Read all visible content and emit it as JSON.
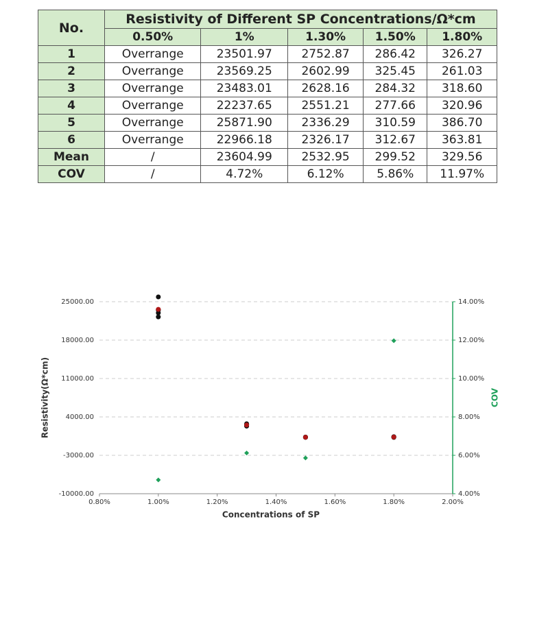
{
  "table": {
    "corner": "No.",
    "title": "Resistivity of Different SP Concentrations/Ω*cm",
    "columns": [
      "0.50%",
      "1%",
      "1.30%",
      "1.50%",
      "1.80%"
    ],
    "rows": [
      [
        "1",
        "Overrange",
        "23501.97",
        "2752.87",
        "286.42",
        "326.27"
      ],
      [
        "2",
        "Overrange",
        "23569.25",
        "2602.99",
        "325.45",
        "261.03"
      ],
      [
        "3",
        "Overrange",
        "23483.01",
        "2628.16",
        "284.32",
        "318.60"
      ],
      [
        "4",
        "Overrange",
        "22237.65",
        "2551.21",
        "277.66",
        "320.96"
      ],
      [
        "5",
        "Overrange",
        "25871.90",
        "2336.29",
        "310.59",
        "386.70"
      ],
      [
        "6",
        "Overrange",
        "22966.18",
        "2326.17",
        "312.67",
        "363.81"
      ],
      [
        "Mean",
        "/",
        "23604.99",
        "2532.95",
        "299.52",
        "329.56"
      ],
      [
        "COV",
        "/",
        "4.72%",
        "6.12%",
        "5.86%",
        "11.97%"
      ]
    ]
  },
  "chart_data": {
    "type": "scatter",
    "x_label": "Concentrations of SP",
    "y_label": "Resistivity(Ω*cm)",
    "y2_label": "COV",
    "xlim": [
      0.8,
      2.0
    ],
    "xticks": [
      {
        "value": 0.8,
        "label": "0.80%"
      },
      {
        "value": 1.0,
        "label": "1.00%"
      },
      {
        "value": 1.2,
        "label": "1.20%"
      },
      {
        "value": 1.4,
        "label": "1.40%"
      },
      {
        "value": 1.6,
        "label": "1.60%"
      },
      {
        "value": 1.8,
        "label": "1.80%"
      },
      {
        "value": 2.0,
        "label": "2.00%"
      }
    ],
    "ylim": [
      -10000,
      25000
    ],
    "yticks": [
      {
        "value": -10000,
        "label": "-10000.00"
      },
      {
        "value": -3000,
        "label": "-3000.00"
      },
      {
        "value": 4000,
        "label": "4000.00"
      },
      {
        "value": 11000,
        "label": "11000.00"
      },
      {
        "value": 18000,
        "label": "18000.00"
      },
      {
        "value": 25000,
        "label": "25000.00"
      }
    ],
    "y2lim": [
      4,
      14
    ],
    "y2ticks": [
      {
        "value": 4,
        "label": "4.00%"
      },
      {
        "value": 6,
        "label": "6.00%"
      },
      {
        "value": 8,
        "label": "8.00%"
      },
      {
        "value": 10,
        "label": "10.00%"
      },
      {
        "value": 12,
        "label": "12.00%"
      },
      {
        "value": 14,
        "label": "14.00%"
      }
    ],
    "grid": true,
    "y2_color": "#1fa05a",
    "series": [
      {
        "color": "#111111",
        "marker": "circle",
        "x": [
          1.0,
          1.0,
          1.0,
          1.0,
          1.0,
          1.0,
          1.3,
          1.3,
          1.3,
          1.3,
          1.3,
          1.3,
          1.5,
          1.5,
          1.5,
          1.5,
          1.5,
          1.5,
          1.8,
          1.8,
          1.8,
          1.8,
          1.8,
          1.8
        ],
        "values": [
          23501.97,
          23569.25,
          23483.01,
          22237.65,
          25871.9,
          22966.18,
          2752.87,
          2602.99,
          2628.16,
          2551.21,
          2336.29,
          2326.17,
          286.42,
          325.45,
          284.32,
          277.66,
          310.59,
          312.67,
          326.27,
          261.03,
          318.6,
          320.96,
          386.7,
          363.81
        ]
      },
      {
        "color": "#b01818",
        "marker": "circle",
        "x": [
          1.0,
          1.3,
          1.5,
          1.8
        ],
        "values": [
          23604.99,
          2532.95,
          299.52,
          329.56
        ]
      },
      {
        "color": "#1fa05a",
        "marker": "diamond",
        "axis": "y2",
        "x": [
          1.0,
          1.3,
          1.5,
          1.8
        ],
        "values": [
          4.72,
          6.12,
          5.86,
          11.97
        ]
      }
    ]
  }
}
